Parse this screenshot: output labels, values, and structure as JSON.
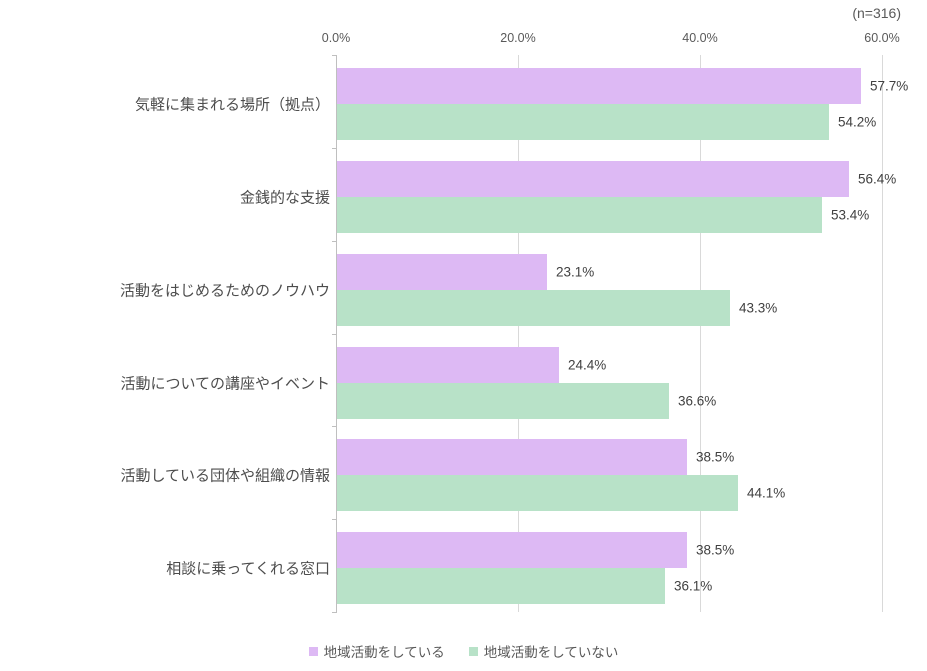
{
  "colors": {
    "background": "#ffffff",
    "series1": "#ddb9f4",
    "series2": "#b8e2c8",
    "gridline": "#d9d9d9",
    "axis_line": "#bfbfbf",
    "tick_label_text": "#595959",
    "category_label_text": "#4d4d4d",
    "value_label_text": "#404040",
    "legend_text": "#595959"
  },
  "chart_data": {
    "type": "bar",
    "orientation": "horizontal",
    "title": "",
    "annotation": "(n=316)",
    "categories": [
      "気軽に集まれる場所（拠点）",
      "金銭的な支援",
      "活動をはじめるためのノウハウ",
      "活動についての講座やイベント",
      "活動している団体や組織の情報",
      "相談に乗ってくれる窓口"
    ],
    "series": [
      {
        "name": "地域活動をしている",
        "color": "#ddb9f4",
        "values": [
          57.7,
          56.4,
          23.1,
          24.4,
          38.5,
          38.5
        ]
      },
      {
        "name": "地域活動をしていない",
        "color": "#b8e2c8",
        "values": [
          54.2,
          53.4,
          43.3,
          36.6,
          44.1,
          36.1
        ]
      }
    ],
    "x_ticks": [
      "0.0%",
      "20.0%",
      "40.0%",
      "60.0%"
    ],
    "xlim": [
      0,
      60
    ],
    "value_label_suffix": "%",
    "grid": true,
    "legend_position": "bottom"
  }
}
